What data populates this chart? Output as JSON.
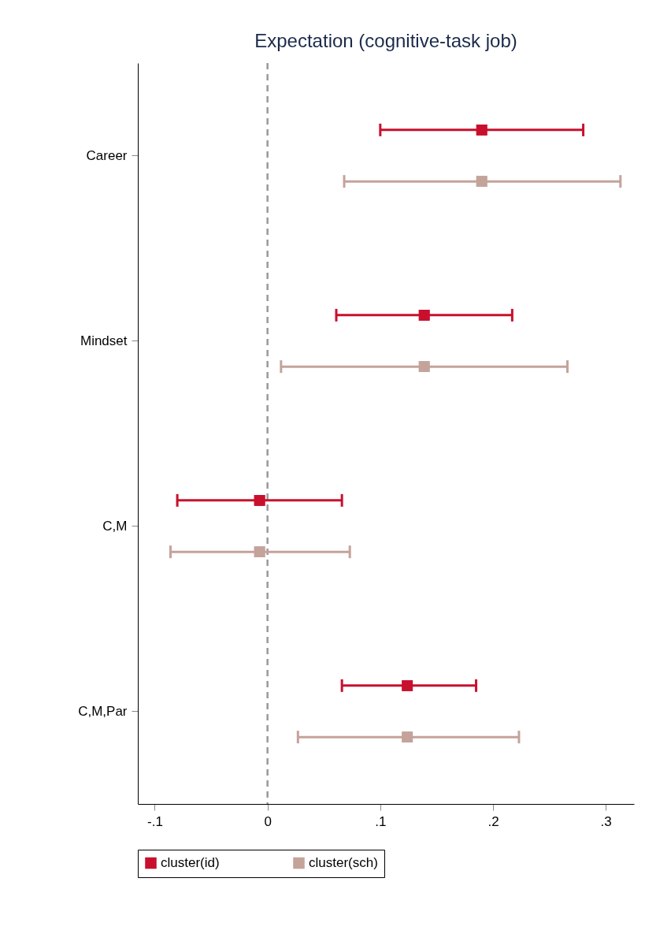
{
  "chart_data": {
    "type": "scatter",
    "orientation": "horizontal",
    "title": "Expectation (cognitive-task job)",
    "categories": [
      "Career",
      "Mindset",
      "C,M",
      "C,M,Par"
    ],
    "series": [
      {
        "name": "cluster(id)",
        "color": "#c8102e",
        "values": [
          0.19,
          0.139,
          -0.007,
          0.124
        ],
        "errors": [
          [
            0.1,
            0.28
          ],
          [
            0.061,
            0.217
          ],
          [
            -0.08,
            0.066
          ],
          [
            0.066,
            0.185
          ]
        ]
      },
      {
        "name": "cluster(sch)",
        "color": "#c4a39b",
        "values": [
          0.19,
          0.139,
          -0.007,
          0.124
        ],
        "errors": [
          [
            0.068,
            0.313
          ],
          [
            0.012,
            0.266
          ],
          [
            -0.086,
            0.073
          ],
          [
            0.027,
            0.223
          ]
        ]
      }
    ],
    "xlim": [
      -0.115,
      0.325
    ],
    "xticks": [
      {
        "value": -0.1,
        "label": "-.1"
      },
      0,
      {
        "value": 0.1,
        "label": ".1"
      },
      {
        "value": 0.2,
        "label": ".2"
      },
      {
        "value": 0.3,
        "label": ".3"
      }
    ],
    "ref_lines": [
      {
        "axis": "x",
        "value": 0,
        "color": "#999999",
        "line_style": "dashed"
      }
    ],
    "marker": "square",
    "legend": "bottom",
    "grid": false
  }
}
